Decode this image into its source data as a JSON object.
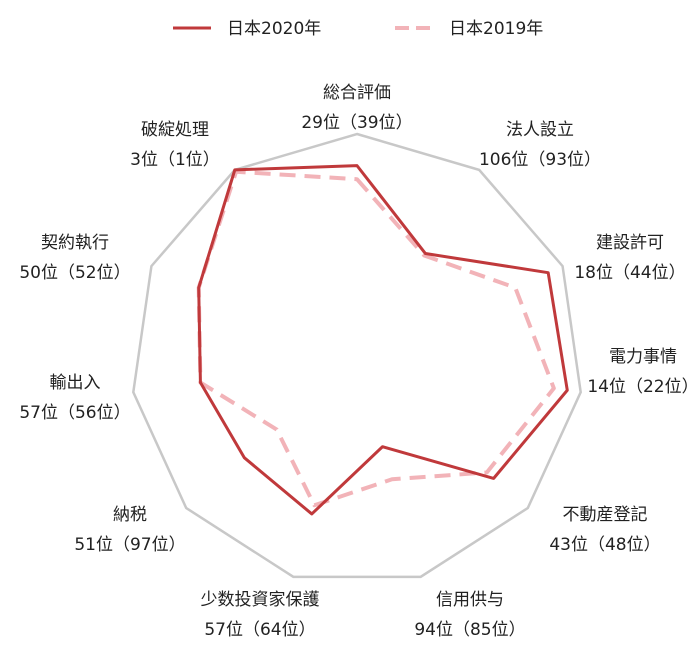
{
  "chart_data": {
    "type": "radar",
    "categories": [
      "総合評価",
      "法人設立",
      "建設許可",
      "電力事情",
      "不動産登記",
      "信用供与",
      "少数投資家保護",
      "納税",
      "輸出入",
      "契約執行",
      "破綻処理"
    ],
    "category_labels": [
      "29位（39位）",
      "106位（93位）",
      "18位（44位）",
      "14位（22位）",
      "43位（48位）",
      "94位（85位）",
      "57位（64位）",
      "51位（97位）",
      "57位（56位）",
      "50位（52位）",
      "3位（1位）"
    ],
    "rlim": [
      0,
      100
    ],
    "series": [
      {
        "name": "日本2020年",
        "color": "#c0393b",
        "dash": false,
        "values": [
          86,
          56,
          93,
          94,
          80,
          40,
          71,
          66,
          70,
          77,
          100
        ]
      },
      {
        "name": "日本2019年",
        "color": "#f2b3b8",
        "dash": true,
        "values": [
          80,
          55,
          77,
          88,
          76,
          55,
          67,
          47,
          70,
          77,
          99
        ]
      }
    ]
  }
}
